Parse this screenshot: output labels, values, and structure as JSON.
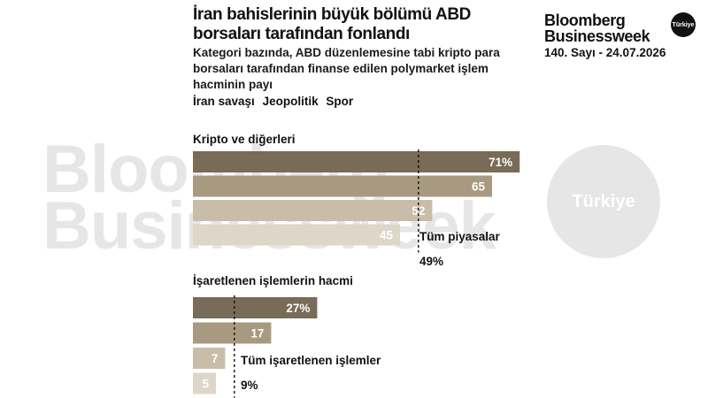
{
  "header": {
    "title": "İran bahislerinin büyük bölümü ABD borsaları tarafından fonlandı",
    "subtitle": "Kategori bazında, ABD düzenlemesine tabi kripto para borsaları tarafından finanse edilen polymarket işlem hacminin payı",
    "legend": [
      "İran savaşı",
      "Jeopolitik",
      "Spor"
    ]
  },
  "brand": {
    "name_line1": "Bloomberg",
    "name_line2": "Businessweek",
    "badge": "Türkiye",
    "issue": "140. Sayı - 24.07.2026"
  },
  "watermark": {
    "line1": "Bloomberg",
    "line2": "Businessweek",
    "badge": "Türkiye"
  },
  "colors": {
    "bar_dark": "#786b57",
    "bar_mid": "#a89a80",
    "bar_light": "#c8bda8",
    "bar_pale": "#ddd6c9",
    "bar_text": "#ffffff"
  },
  "chart_data": [
    {
      "type": "bar",
      "title": "Kripto ve diğerleri",
      "categories": [
        "",
        "",
        "",
        ""
      ],
      "values": [
        71,
        65,
        52,
        45
      ],
      "labels": [
        "71%",
        "65",
        "52",
        "45"
      ],
      "reference": {
        "label": "Tüm piyasalar",
        "value": 49,
        "value_label": "49%"
      },
      "xlim": [
        0,
        100
      ]
    },
    {
      "type": "bar",
      "title": "İşaretlenen işlemlerin hacmi",
      "categories": [
        "",
        "",
        "",
        ""
      ],
      "values": [
        27,
        17,
        7,
        5
      ],
      "labels": [
        "27%",
        "17",
        "7",
        "5"
      ],
      "reference": {
        "label": "Tüm işaretlenen işlemler",
        "value": 9,
        "value_label": "9%"
      },
      "xlim": [
        0,
        100
      ]
    }
  ]
}
